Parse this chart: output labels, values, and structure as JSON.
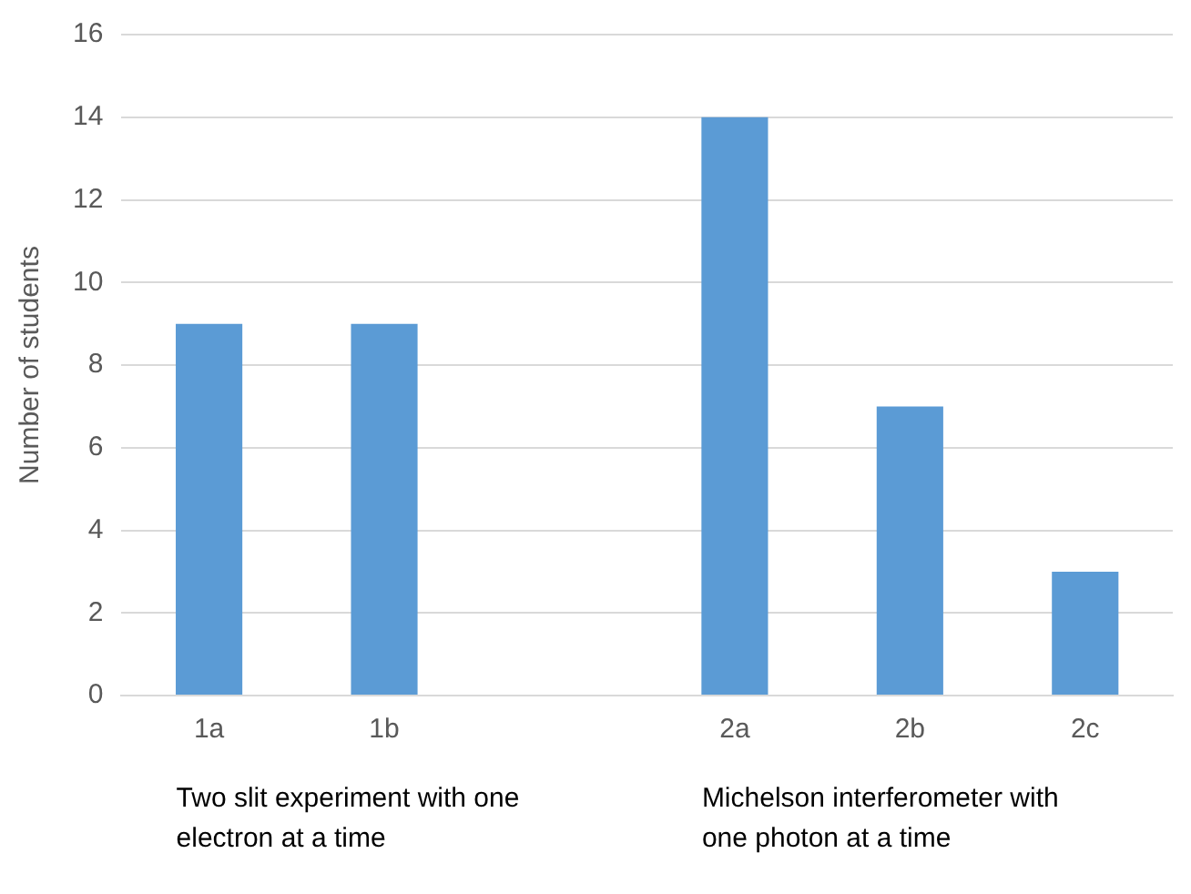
{
  "chart_data": {
    "type": "bar",
    "ylabel": "Number of students",
    "categories": [
      "1a",
      "1b",
      null,
      "2a",
      "2b",
      "2c"
    ],
    "values": [
      9,
      9,
      null,
      14,
      7,
      3
    ],
    "color": "#5b9bd5",
    "ylim": [
      0,
      16
    ],
    "yticks": [
      0,
      2,
      4,
      6,
      8,
      10,
      12,
      14,
      16
    ],
    "grid": "y",
    "legend": false,
    "annotations": [
      "Two slit experiment with one electron at a time",
      "Michelson interferometer with one photon at a time"
    ]
  }
}
